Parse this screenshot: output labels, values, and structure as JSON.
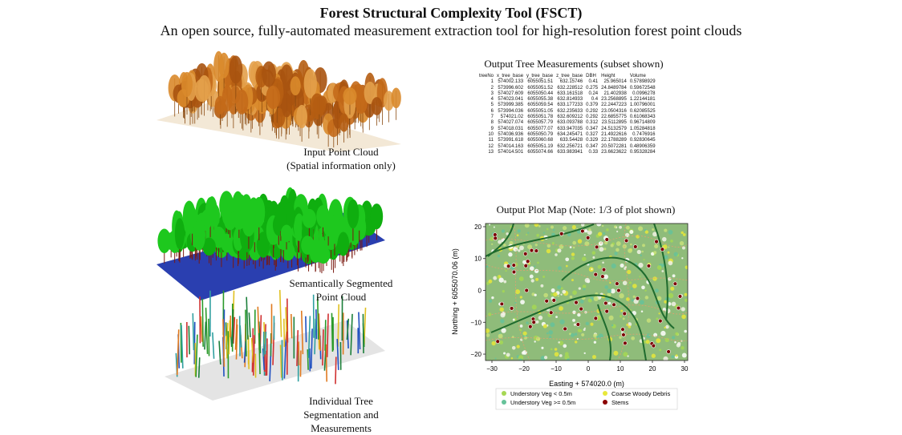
{
  "header": {
    "title": "Forest Structural Complexity Tool (FSCT)",
    "subtitle": "An open source, fully-automated measurement extraction tool for high-resolution forest point clouds"
  },
  "captions": {
    "input": [
      "Input Point Cloud",
      "(Spatial information only)"
    ],
    "semantic": [
      "Semantically Segmented",
      "Point Cloud"
    ],
    "individual": [
      "Individual Tree",
      "Segmentation and",
      "Measurements"
    ]
  },
  "table": {
    "title": "Output Tree Measurements (subset shown)",
    "columns": [
      "treeNo",
      "x_tree_base",
      "y_tree_base",
      "z_tree_base",
      "DBH",
      "Height",
      "Volume"
    ],
    "rows": [
      [
        "1",
        "574002.133",
        "6055051.51",
        "632.15746",
        "0.41",
        "25.965014",
        "0.57898929"
      ],
      [
        "2",
        "573996.602",
        "6055051.52",
        "632.228512",
        "0.275",
        "24.8489784",
        "0.59672548"
      ],
      [
        "3",
        "574027.609",
        "6055050.44",
        "633.161518",
        "0.24",
        "21.402938",
        "0.0996278"
      ],
      [
        "4",
        "574023.041",
        "6055055.38",
        "632.814933",
        "0.4",
        "23.2568895",
        "1.22144181"
      ],
      [
        "5",
        "573999.385",
        "6055059.54",
        "633.177233",
        "0.379",
        "22.2447223",
        "1.00796001"
      ],
      [
        "6",
        "573994.036",
        "6055051.05",
        "632.235633",
        "0.292",
        "23.0504316",
        "0.62085525"
      ],
      [
        "7",
        "574021.02",
        "6055051.78",
        "632.609212",
        "0.292",
        "22.6855775",
        "0.61068343"
      ],
      [
        "8",
        "574027.074",
        "6055057.79",
        "633.093788",
        "0.312",
        "23.5112895",
        "0.96714809"
      ],
      [
        "9",
        "574018.031",
        "6055077.07",
        "633.947035",
        "0.347",
        "24.5132579",
        "1.05284818"
      ],
      [
        "10",
        "574036.936",
        "6055050.79",
        "634.245471",
        "0.327",
        "21.4922616",
        "0.7476916"
      ],
      [
        "11",
        "573991.618",
        "6055060.68",
        "633.54428",
        "0.329",
        "22.1788289",
        "0.92830645"
      ],
      [
        "12",
        "574014.163",
        "6055051.19",
        "632.256721",
        "0.347",
        "20.5072281",
        "0.48906359"
      ],
      [
        "13",
        "574014.501",
        "6055074.66",
        "633.983941",
        "0.33",
        "23.6623622",
        "0.95328284"
      ]
    ]
  },
  "plot_map": {
    "title": "Output Plot Map (Note: 1/3 of plot shown)",
    "xlabel": "Easting + 574020.0 (m)",
    "ylabel": "Northing + 6055070.06 (m)",
    "xticks": [
      "−30",
      "−20",
      "−10",
      "0",
      "10",
      "20",
      "30"
    ],
    "yticks": [
      "20",
      "10",
      "0",
      "−10",
      "−20"
    ],
    "xlim": [
      -32,
      31
    ],
    "ylim": [
      -22,
      21
    ],
    "legend": [
      {
        "label": "Understory Veg < 0.5m",
        "color": "#a6d854"
      },
      {
        "label": "Coarse Woody Debris",
        "color": "#e8e83a"
      },
      {
        "label": "Understory Veg >= 0.5m",
        "color": "#66c29a"
      },
      {
        "label": "Stems",
        "color": "#8b0000"
      }
    ],
    "colors": {
      "ground": "#8fbc7a",
      "contour_major": "#1f6b2e",
      "contour_minor": "#e0a070",
      "stem": "#7a0000"
    }
  }
}
